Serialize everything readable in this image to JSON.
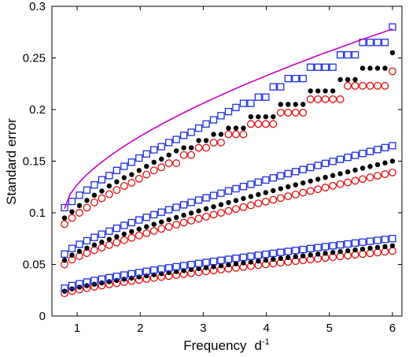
{
  "chart_data": {
    "type": "scatter",
    "xlabel": "Frequency",
    "xlabel_unit": "d",
    "xlabel_unit_exponent": "-1",
    "ylabel": "Standard  error",
    "xlim": [
      0.6,
      6.15
    ],
    "ylim": [
      0,
      0.3
    ],
    "xticks": [
      "1",
      "2",
      "3",
      "4",
      "5",
      "6"
    ],
    "yticks": [
      "0",
      "0.05",
      "0.1",
      "0.15",
      "0.2",
      "0.25",
      "0.3"
    ],
    "grid": false,
    "legend": "none",
    "x_range": [
      0.8,
      6.0
    ],
    "n_points": 40,
    "groups": [
      {
        "blue_square": [
          0.105,
          0.111,
          0.117,
          0.122,
          0.127,
          0.132,
          0.136,
          0.141,
          0.145,
          0.149,
          0.153,
          0.157,
          0.161,
          0.164,
          0.168,
          0.171,
          0.175,
          0.178,
          0.182,
          0.186,
          0.19,
          0.194,
          0.198,
          0.202,
          0.206,
          0.206,
          0.212,
          0.212,
          0.222,
          0.222,
          0.23,
          0.23,
          0.23,
          0.241,
          0.241,
          0.241,
          0.241,
          0.253,
          0.253,
          0.253
        ],
        "blue_square_tail": [
          0.265,
          0.265,
          0.265,
          0.265,
          0.28
        ],
        "black_dot": [
          0.095,
          0.101,
          0.107,
          0.112,
          0.117,
          0.121,
          0.126,
          0.13,
          0.134,
          0.137,
          0.141,
          0.145,
          0.149,
          0.152,
          0.156,
          0.16,
          0.163,
          0.163,
          0.17,
          0.17,
          0.176,
          0.176,
          0.182,
          0.182,
          0.182,
          0.193,
          0.193,
          0.193,
          0.193,
          0.205,
          0.205,
          0.205,
          0.205,
          0.218,
          0.218,
          0.218,
          0.218,
          0.229,
          0.229,
          0.229
        ],
        "black_dot_tail": [
          0.24,
          0.24,
          0.24,
          0.24,
          0.255
        ],
        "red_circle": [
          0.089,
          0.095,
          0.1,
          0.105,
          0.11,
          0.114,
          0.118,
          0.122,
          0.126,
          0.129,
          0.133,
          0.137,
          0.141,
          0.144,
          0.148,
          0.148,
          0.156,
          0.156,
          0.163,
          0.163,
          0.168,
          0.168,
          0.176,
          0.176,
          0.176,
          0.186,
          0.186,
          0.186,
          0.186,
          0.197,
          0.197,
          0.197,
          0.197,
          0.21,
          0.21,
          0.21,
          0.21,
          0.21,
          0.223,
          0.223
        ],
        "red_circle_tail": [
          0.223,
          0.223,
          0.223,
          0.223,
          0.237
        ]
      },
      {
        "blue_square_range": [
          0.06,
          0.165
        ],
        "black_dot_range": [
          0.054,
          0.15
        ],
        "red_circle_range": [
          0.05,
          0.139
        ]
      },
      {
        "blue_square_range": [
          0.027,
          0.075
        ],
        "black_dot_range": [
          0.024,
          0.068
        ],
        "red_circle_range": [
          0.022,
          0.063
        ]
      }
    ],
    "fit_line": {
      "color": "#cc00cc",
      "x": [
        0.8,
        6.0
      ],
      "y_start": 0.104,
      "y_end": 0.278
    },
    "colors": {
      "blue_square": "#1f2fe0",
      "black_dot": "#000000",
      "red_circle": "#e01010"
    }
  }
}
